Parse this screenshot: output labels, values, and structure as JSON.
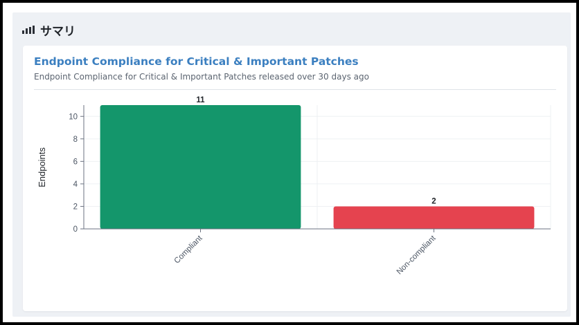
{
  "panel": {
    "title": "サマリ",
    "icon": "bar-chart-icon"
  },
  "card": {
    "title": "Endpoint Compliance for Critical & Important Patches",
    "subtitle": "Endpoint Compliance for Critical & Important Patches released over 30 days ago"
  },
  "chart_data": {
    "type": "bar",
    "title": "Endpoint Compliance for Critical & Important Patches",
    "subtitle": "Endpoint Compliance for Critical & Important Patches released over 30 days ago",
    "xlabel": "",
    "ylabel": "Endpoints",
    "categories": [
      "Compliant",
      "Non-compliant"
    ],
    "values": [
      11,
      2
    ],
    "colors": [
      "#14966b",
      "#e5434f"
    ],
    "ylim": [
      0,
      11
    ],
    "yticks": [
      0,
      2,
      4,
      6,
      8,
      10
    ],
    "grid": true,
    "data_labels": true,
    "legend": "none"
  }
}
